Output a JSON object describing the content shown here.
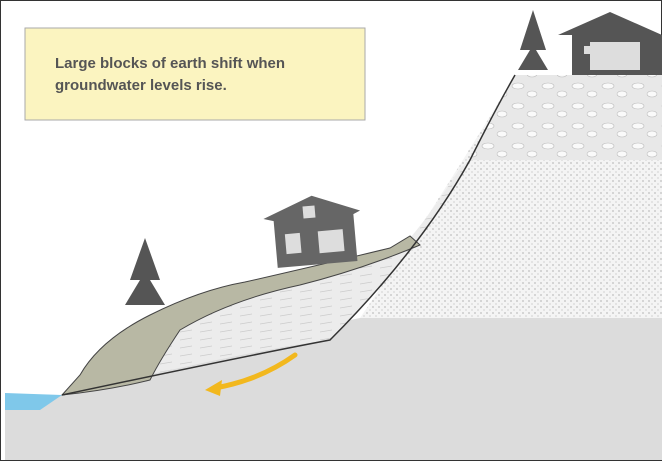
{
  "caption": {
    "lines": [
      "Large blocks of earth shift when",
      "groundwater levels rise."
    ]
  }
}
